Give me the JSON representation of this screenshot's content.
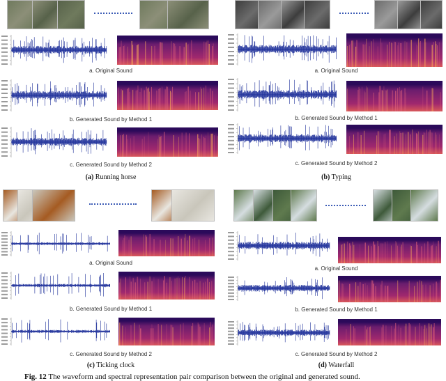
{
  "panels": [
    {
      "id": "a",
      "subcaption_label": "(a)",
      "subcaption_text": "Running horse",
      "thumb_colors": [
        "#6f7a5d",
        "#8c8f78",
        "#57624a"
      ],
      "rows": [
        {
          "caption": "a. Original Sound"
        },
        {
          "caption": "b. Generated Sound by Method 1"
        },
        {
          "caption": "c. Generated Sound by Method 2"
        }
      ]
    },
    {
      "id": "b",
      "subcaption_label": "(b)",
      "subcaption_text": "Typing",
      "thumb_colors": [
        "#3d3d3d",
        "#6b6b6b",
        "#9a9a9a"
      ],
      "rows": [
        {
          "caption": "a. Original Sound"
        },
        {
          "caption": "b. Generated Sound by Method 1"
        },
        {
          "caption": "c. Generated Sound by Method 2"
        }
      ]
    },
    {
      "id": "c",
      "subcaption_label": "(c)",
      "subcaption_text": "Ticking clock",
      "thumb_colors": [
        "#a55b22",
        "#e8e6e0",
        "#c9c6bb"
      ],
      "rows": [
        {
          "caption": "a. Original Sound"
        },
        {
          "caption": "b. Generated Sound by Method 1"
        },
        {
          "caption": "c. Generated Sound by Method 2"
        }
      ]
    },
    {
      "id": "d",
      "subcaption_label": "(d)",
      "subcaption_text": "Waterfall",
      "thumb_colors": [
        "#5f7a4e",
        "#d5dde0",
        "#3e5a3a"
      ],
      "rows": [
        {
          "caption": "a. Original Sound"
        },
        {
          "caption": "b. Generated Sound by Method 1"
        },
        {
          "caption": "c. Generated Sound by Method 2"
        }
      ]
    }
  ],
  "figure_caption": {
    "label": "Fig. 12",
    "text": "The waveform and spectral representation pair comparison between the original and generated sound."
  },
  "colors": {
    "waveform": "#1d2f9a",
    "spectrogram_dark": "#2b0a5a",
    "spectrogram_mid": "#a0286e",
    "spectrogram_bright": "#f5a35a"
  }
}
